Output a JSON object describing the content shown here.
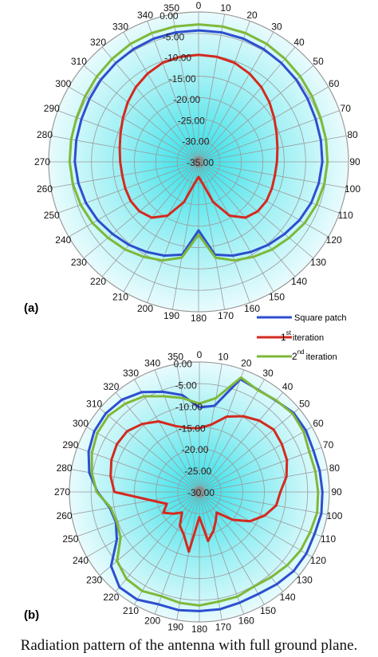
{
  "caption": "Radiation pattern of the antenna with full ground plane.",
  "colors": {
    "square_patch": "#2d4fcf",
    "first_iteration": "#d42a1f",
    "second_iteration": "#7fb83a",
    "grid": "#9a9a9a",
    "fill_center": "#2fe0e8",
    "fill_edge": "#e9fbfd"
  },
  "legend": {
    "items": [
      {
        "label": "Square patch",
        "color": "#2d4fcf"
      },
      {
        "base": "1",
        "sup": "st",
        "rest": "iteration",
        "color": "#d42a1f"
      },
      {
        "base": "2",
        "sup": "nd",
        "rest": "iteration",
        "color": "#7fb83a"
      }
    ]
  },
  "chart_data": [
    {
      "type": "polar-line",
      "panel_label": "(a)",
      "title": "",
      "angle_ticks": [
        "0",
        "10",
        "20",
        "30",
        "40",
        "50",
        "60",
        "70",
        "80",
        "90",
        "100",
        "110",
        "120",
        "130",
        "140",
        "150",
        "160",
        "170",
        "180",
        "190",
        "200",
        "210",
        "220",
        "230",
        "240",
        "250",
        "260",
        "270",
        "280",
        "290",
        "300",
        "310",
        "320",
        "330",
        "340",
        "350"
      ],
      "radial_ticks": [
        "0.00",
        "-5.00",
        "-10.00",
        "-15.00",
        "-20.00",
        "-25.00",
        "-30.00",
        "-35.00"
      ],
      "rlim": [
        -35,
        0
      ],
      "grid": true,
      "legend": "none",
      "theta": [
        0,
        10,
        20,
        30,
        40,
        50,
        60,
        70,
        80,
        90,
        100,
        110,
        120,
        130,
        140,
        150,
        160,
        170,
        180,
        190,
        200,
        210,
        220,
        230,
        240,
        250,
        260,
        270,
        280,
        290,
        300,
        310,
        320,
        330,
        340,
        350
      ],
      "series": [
        {
          "name": "Square patch",
          "color": "#2d4fcf",
          "values": [
            -4.3,
            -4.3,
            -4.4,
            -4.6,
            -4.9,
            -5.2,
            -5.6,
            -5.9,
            -6.0,
            -6.1,
            -6.5,
            -7.0,
            -7.8,
            -8.8,
            -9.7,
            -10.7,
            -11.7,
            -13.0,
            -19.0,
            -13.0,
            -11.7,
            -10.7,
            -9.7,
            -8.8,
            -7.8,
            -7.0,
            -6.5,
            -6.1,
            -6.0,
            -5.9,
            -5.6,
            -5.2,
            -4.9,
            -4.6,
            -4.4,
            -4.3
          ]
        },
        {
          "name": "1st iteration",
          "color": "#d42a1f",
          "values": [
            -10.0,
            -10.1,
            -10.4,
            -11.2,
            -12.2,
            -13.4,
            -14.6,
            -15.6,
            -16.3,
            -16.7,
            -16.9,
            -16.8,
            -16.7,
            -17.0,
            -18.0,
            -20.5,
            -25.0,
            -30.0,
            -31.5,
            -30.0,
            -25.0,
            -20.5,
            -18.0,
            -17.0,
            -16.7,
            -16.8,
            -16.9,
            -16.7,
            -16.3,
            -15.6,
            -14.6,
            -13.4,
            -12.2,
            -11.2,
            -10.4,
            -10.1
          ]
        },
        {
          "name": "2nd iteration",
          "color": "#7fb83a",
          "values": [
            -2.9,
            -2.9,
            -3.0,
            -3.2,
            -3.6,
            -4.0,
            -4.4,
            -4.7,
            -4.8,
            -4.9,
            -5.2,
            -5.7,
            -6.4,
            -7.4,
            -8.3,
            -9.4,
            -10.5,
            -12.3,
            -18.0,
            -12.3,
            -10.5,
            -9.4,
            -8.3,
            -7.4,
            -6.4,
            -5.7,
            -5.2,
            -4.9,
            -4.8,
            -4.7,
            -4.4,
            -4.0,
            -3.6,
            -3.2,
            -3.0,
            -2.9
          ]
        }
      ]
    },
    {
      "type": "polar-line",
      "panel_label": "(b)",
      "title": "",
      "angle_ticks": [
        "0",
        "10",
        "20",
        "30",
        "40",
        "50",
        "60",
        "70",
        "80",
        "90",
        "100",
        "110",
        "120",
        "130",
        "140",
        "150",
        "160",
        "170",
        "180",
        "190",
        "200",
        "210",
        "220",
        "230",
        "240",
        "250",
        "260",
        "270",
        "280",
        "290",
        "300",
        "310",
        "320",
        "330",
        "340",
        "350"
      ],
      "radial_ticks": [
        "0.00",
        "-5.00",
        "-10.00",
        "-15.00",
        "-20.00",
        "-25.00",
        "-30.00"
      ],
      "rlim": [
        -30,
        0
      ],
      "grid": true,
      "legend": "top-right",
      "theta": [
        0,
        10,
        20,
        30,
        40,
        50,
        60,
        70,
        80,
        90,
        100,
        110,
        120,
        130,
        140,
        150,
        160,
        170,
        180,
        190,
        200,
        210,
        220,
        230,
        240,
        250,
        260,
        270,
        280,
        290,
        300,
        310,
        320,
        330,
        340,
        350
      ],
      "series": [
        {
          "name": "Square patch",
          "color": "#2d4fcf",
          "values": [
            -10.5,
            -9.8,
            -2.3,
            -2.8,
            -2.5,
            -1.6,
            -1.6,
            -2.0,
            -1.8,
            -1.6,
            -1.4,
            -1.7,
            -1.5,
            -1.6,
            -2.2,
            -2.8,
            -2.8,
            -2.5,
            -2.5,
            -2.3,
            -2.4,
            -1.3,
            -1.3,
            -3.4,
            -8.0,
            -9.5,
            -9.0,
            -6.5,
            -4.2,
            -2.8,
            -2.0,
            -1.8,
            -2.2,
            -3.4,
            -5.4,
            -7.3
          ]
        },
        {
          "name": "1st iteration",
          "color": "#d42a1f",
          "values": [
            -15.3,
            -14.2,
            -11.5,
            -9.8,
            -8.5,
            -7.6,
            -8.0,
            -8.5,
            -9.6,
            -11.3,
            -12.0,
            -14.0,
            -16.5,
            -20.0,
            -23.8,
            -22.4,
            -20.5,
            -18.5,
            -24.2,
            -16.0,
            -19.5,
            -21.0,
            -23.8,
            -22.2,
            -20.4,
            -22.0,
            -18.8,
            -10.4,
            -9.2,
            -8.4,
            -8.0,
            -8.2,
            -9.5,
            -11.2,
            -13.8,
            -15.0
          ]
        },
        {
          "name": "2nd iteration",
          "color": "#7fb83a",
          "values": [
            -9.6,
            -8.0,
            -1.9,
            -2.9,
            -2.4,
            -1.9,
            -2.2,
            -3.0,
            -2.8,
            -2.6,
            -2.4,
            -2.8,
            -3.0,
            -3.6,
            -4.3,
            -4.8,
            -4.3,
            -4.3,
            -3.8,
            -4.0,
            -4.4,
            -3.6,
            -3.8,
            -5.2,
            -9.0,
            -9.7,
            -9.2,
            -6.3,
            -4.8,
            -3.6,
            -2.8,
            -2.6,
            -3.4,
            -4.5,
            -6.5,
            -8.0
          ]
        }
      ]
    }
  ]
}
